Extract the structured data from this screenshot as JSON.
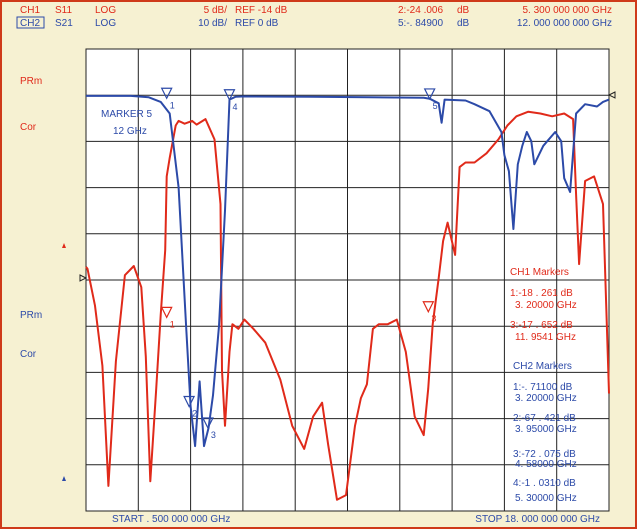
{
  "colors": {
    "background": "#f6f1d2",
    "frame": "#cf3a1a",
    "grid": "#222222",
    "ch1": "#e02a1a",
    "ch2": "#2c4aa8"
  },
  "header": {
    "row1": [
      "CH1",
      "S11",
      "LOG",
      "5 dB/",
      "REF -14 dB",
      "2:-24 .006",
      "dB",
      "5. 300  000  000  GHz"
    ],
    "row2": [
      "CH2",
      "S21",
      "LOG",
      "10 dB/",
      "REF 0 dB",
      "5:-. 84900",
      "dB",
      "12. 000  000  000  GHz"
    ]
  },
  "side_labels": {
    "ch1_prm": "PRm",
    "ch1_cor": "Cor",
    "ch2_prm": "PRm",
    "ch2_cor": "Cor"
  },
  "annotations": {
    "marker5_title": "MARKER 5",
    "marker5_freq": "12 GHz"
  },
  "ch1_markers_panel": {
    "title": "CH1 Markers",
    "lines": [
      "1:-18 . 261  dB",
      "3. 20000  GHz",
      "3:-17 . 652  dB",
      "11. 9541  GHz"
    ]
  },
  "ch2_markers_panel": {
    "title": "CH2 Markers",
    "lines": [
      "1:-. 71100  dB",
      "3. 20000  GHz",
      "2:-67 . 421  dB",
      "3. 95000  GHz",
      "3:-72 . 075  dB",
      "4. 58000  GHz",
      "4:-1 . 0310  dB",
      "5. 30000  GHz"
    ]
  },
  "footer": {
    "start": "START  . 500  000  000  GHz",
    "stop": "STOP 18. 000  000  000  GHz"
  },
  "chart_data": {
    "type": "line",
    "x_range": [
      0.5,
      18.0
    ],
    "x_unit": "GHz",
    "grid": true,
    "grid_divisions": {
      "x": 10,
      "y": 10
    },
    "series": [
      {
        "name": "CH1",
        "color": "#e02a1a",
        "y_ref_db": -14,
        "y_scale_db_per_div": 5,
        "x": [
          0.5,
          0.55,
          0.8,
          1.05,
          1.25,
          1.5,
          1.8,
          2.1,
          2.35,
          2.5,
          2.65,
          2.85,
          3.0,
          3.15,
          3.2,
          3.3,
          3.5,
          3.6,
          3.8,
          4.05,
          4.2,
          4.5,
          4.8,
          5.0,
          5.05,
          5.15,
          5.3,
          5.4,
          5.6,
          5.8,
          6.1,
          6.5,
          7.0,
          7.4,
          7.8,
          8.1,
          8.4,
          8.6,
          8.9,
          9.2,
          9.5,
          9.7,
          9.9,
          10.1,
          10.3,
          10.6,
          10.9,
          11.2,
          11.5,
          11.8,
          11.95,
          12.1,
          12.3,
          12.45,
          12.6,
          12.85,
          13.0,
          13.2,
          13.5,
          13.9,
          14.3,
          14.6,
          14.9,
          15.3,
          15.7,
          16.1,
          16.5,
          16.8,
          16.9,
          17.0,
          17.2,
          17.5,
          17.8,
          18.0
        ],
        "y": [
          -12.8,
          -13.0,
          -17.0,
          -23.5,
          -36.5,
          -23.0,
          -13.7,
          -12.7,
          -15.0,
          -22.5,
          -36.0,
          -26.0,
          -18.0,
          -11.0,
          -3.0,
          -1.0,
          2.5,
          3.0,
          2.7,
          3.0,
          2.6,
          3.2,
          1.0,
          -6.0,
          -24.0,
          -30.0,
          -22.0,
          -19.0,
          -19.5,
          -18.5,
          -19.5,
          -21.0,
          -25.0,
          -30.0,
          -32.5,
          -29.0,
          -27.5,
          -32.0,
          -38.0,
          -37.5,
          -30.0,
          -27.0,
          -25.5,
          -19.5,
          -19.0,
          -19.0,
          -18.5,
          -22.0,
          -29.0,
          -31.0,
          -26.0,
          -19.0,
          -14.0,
          -10.0,
          -8.0,
          -11.5,
          -2.0,
          -1.5,
          -1.5,
          -0.5,
          1.0,
          2.5,
          3.5,
          4.0,
          3.8,
          3.5,
          3.8,
          3.2,
          -5.0,
          -12.5,
          -3.5,
          -3.0,
          -6.0,
          -26.5
        ]
      },
      {
        "name": "CH2",
        "color": "#2c4aa8",
        "y_ref_db": 0,
        "y_scale_db_per_div": 10,
        "x": [
          0.5,
          2.0,
          2.6,
          3.0,
          3.3,
          3.6,
          3.85,
          4.0,
          4.15,
          4.3,
          4.45,
          4.6,
          4.75,
          4.95,
          5.15,
          5.3,
          5.5,
          5.8,
          8.0,
          10.0,
          11.8,
          12.0,
          12.3,
          12.4,
          12.5,
          13.2,
          13.5,
          14.0,
          14.4,
          14.5,
          14.65,
          14.8,
          14.95,
          15.1,
          15.25,
          15.4,
          15.5,
          15.8,
          16.2,
          16.4,
          16.5,
          16.7,
          16.9,
          17.2,
          17.6,
          17.8,
          18.0
        ],
        "y": [
          -0.2,
          -0.2,
          -0.5,
          -1.5,
          -4.0,
          -20.0,
          -50.0,
          -67.4,
          -76.0,
          -62.0,
          -76.0,
          -72.1,
          -65.0,
          -50.0,
          -25.0,
          -1.0,
          -0.4,
          -0.3,
          -0.4,
          -0.5,
          -0.6,
          -0.8,
          -1.8,
          -6.0,
          -1.0,
          -1.2,
          -2.0,
          -3.5,
          -8.0,
          -13.0,
          -16.5,
          -29.0,
          -15.0,
          -11.0,
          -8.0,
          -10.0,
          -15.0,
          -11.0,
          -8.0,
          -10.0,
          -18.0,
          -21.0,
          -4.0,
          -2.0,
          -2.5,
          -1.5,
          -1.0
        ]
      }
    ],
    "markers": {
      "ch1": [
        {
          "label": "1",
          "x": 3.2,
          "y": -18.261
        },
        {
          "label": "3",
          "x": 11.9541,
          "y": -17.652
        }
      ],
      "ch2": [
        {
          "label": "1",
          "x": 3.2,
          "y": -0.711
        },
        {
          "label": "2",
          "x": 3.95,
          "y": -67.421
        },
        {
          "label": "3",
          "x": 4.58,
          "y": -72.075
        },
        {
          "label": "4",
          "x": 5.3,
          "y": -1.031
        },
        {
          "label": "5",
          "x": 12.0,
          "y": -0.849
        }
      ]
    }
  }
}
